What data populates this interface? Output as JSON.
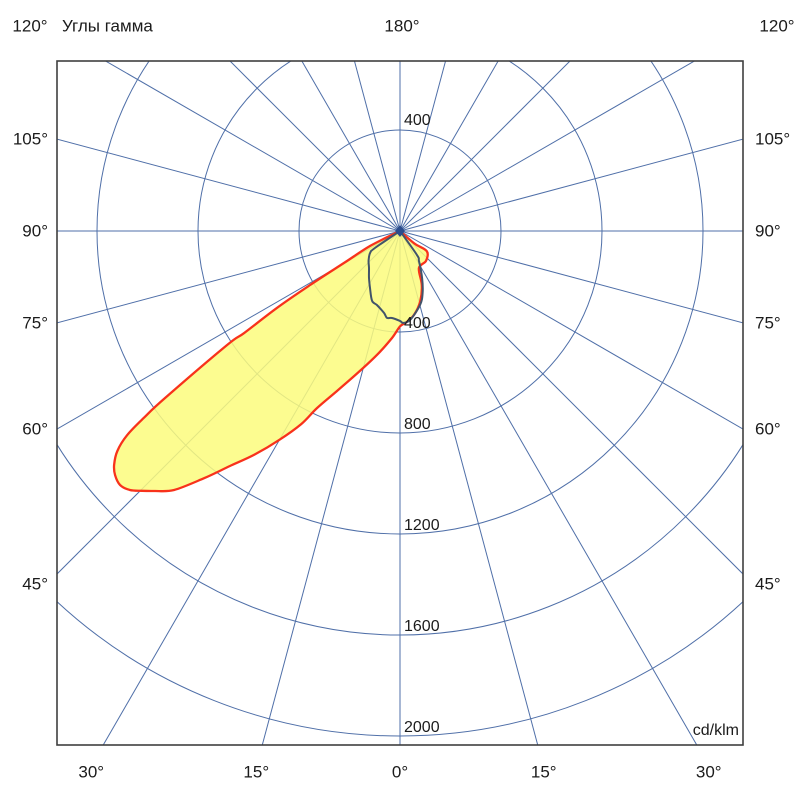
{
  "header": {
    "title": "Углы гамма",
    "top_left_angle": "120°",
    "top_center_angle": "180°",
    "top_right_angle": "120°"
  },
  "unit_label": "cd/klm",
  "chart_data": {
    "type": "polar_photometric",
    "title": "Углы гамма",
    "units": "cd/klm",
    "grid": {
      "spoke_step_deg": 15,
      "ring_values": [
        400,
        800,
        1200,
        1600,
        2000
      ],
      "ring_label_top": "400",
      "ring_labels_bottom": [
        "400",
        "800",
        "1200",
        "1600",
        "2000"
      ],
      "radial_max": 2000
    },
    "axis_labels": {
      "top_left": "120°",
      "top_center": "180°",
      "top_right": "120°",
      "left_side": [
        "105°",
        "90°",
        "75°",
        "60°",
        "45°"
      ],
      "left_side_values": [
        105,
        90,
        75,
        60,
        45
      ],
      "right_side": [
        "105°",
        "90°",
        "75°",
        "60°",
        "45°"
      ],
      "right_side_values": [
        105,
        90,
        75,
        60,
        45
      ],
      "bottom": [
        "30°",
        "15°",
        "0°",
        "15°",
        "30°"
      ],
      "bottom_values": [
        -30,
        -15,
        0,
        15,
        30
      ]
    },
    "colors": {
      "grid": "#4f6fa8",
      "border": "#3f3f3f",
      "beam_outline": "#f8321b",
      "beam_fill": "#fbfb7d",
      "secondary_curve": "#42546a",
      "center_marker": "#2b4c8c",
      "text": "#1b1b1b"
    },
    "series": [
      {
        "id": "main-beam-curve",
        "style": "filled",
        "points_gamma_value": [
          [
            -55,
            0
          ],
          [
            -49,
            75
          ],
          [
            -53,
            133
          ],
          [
            -41,
            157
          ],
          [
            -27,
            165
          ],
          [
            -22,
            231
          ],
          [
            -16,
            290
          ],
          [
            -9.5,
            337
          ],
          [
            -4,
            362
          ],
          [
            0,
            378
          ],
          [
            4.3,
            425
          ],
          [
            9.8,
            490
          ],
          [
            16,
            577
          ],
          [
            21.5,
            681
          ],
          [
            25.1,
            774
          ],
          [
            27.1,
            859
          ],
          [
            30,
            955
          ],
          [
            33,
            1055
          ],
          [
            35.9,
            1149
          ],
          [
            38.4,
            1249
          ],
          [
            41.1,
            1361
          ],
          [
            43.4,
            1417
          ],
          [
            44.8,
            1450
          ],
          [
            46.2,
            1482
          ],
          [
            47.8,
            1497
          ],
          [
            49.4,
            1486
          ],
          [
            50.7,
            1463
          ],
          [
            52.1,
            1419
          ],
          [
            53.2,
            1350
          ],
          [
            53.9,
            1255
          ],
          [
            54.6,
            1141
          ],
          [
            56.6,
            820
          ],
          [
            56.8,
            737
          ],
          [
            58,
            574
          ],
          [
            59,
            416
          ],
          [
            60.3,
            255
          ],
          [
            63.4,
            133
          ],
          [
            66,
            0
          ]
        ]
      },
      {
        "id": "secondary-curve",
        "style": "outline",
        "points_gamma_value": [
          [
            57,
            0
          ],
          [
            55.8,
            120
          ],
          [
            53.7,
            147
          ],
          [
            47,
            170
          ],
          [
            40,
            191
          ],
          [
            33.4,
            223
          ],
          [
            27.8,
            255
          ],
          [
            21.8,
            298
          ],
          [
            17.3,
            307
          ],
          [
            11,
            331
          ],
          [
            8.5,
            348
          ],
          [
            5.3,
            346
          ],
          [
            0,
            356
          ],
          [
            -1.9,
            364
          ],
          [
            -6.4,
            355
          ],
          [
            -15.1,
            304
          ],
          [
            -20,
            262
          ],
          [
            -25.1,
            206
          ],
          [
            -32.3,
            141
          ],
          [
            -35.3,
            116
          ],
          [
            -38,
            0
          ]
        ]
      }
    ]
  }
}
